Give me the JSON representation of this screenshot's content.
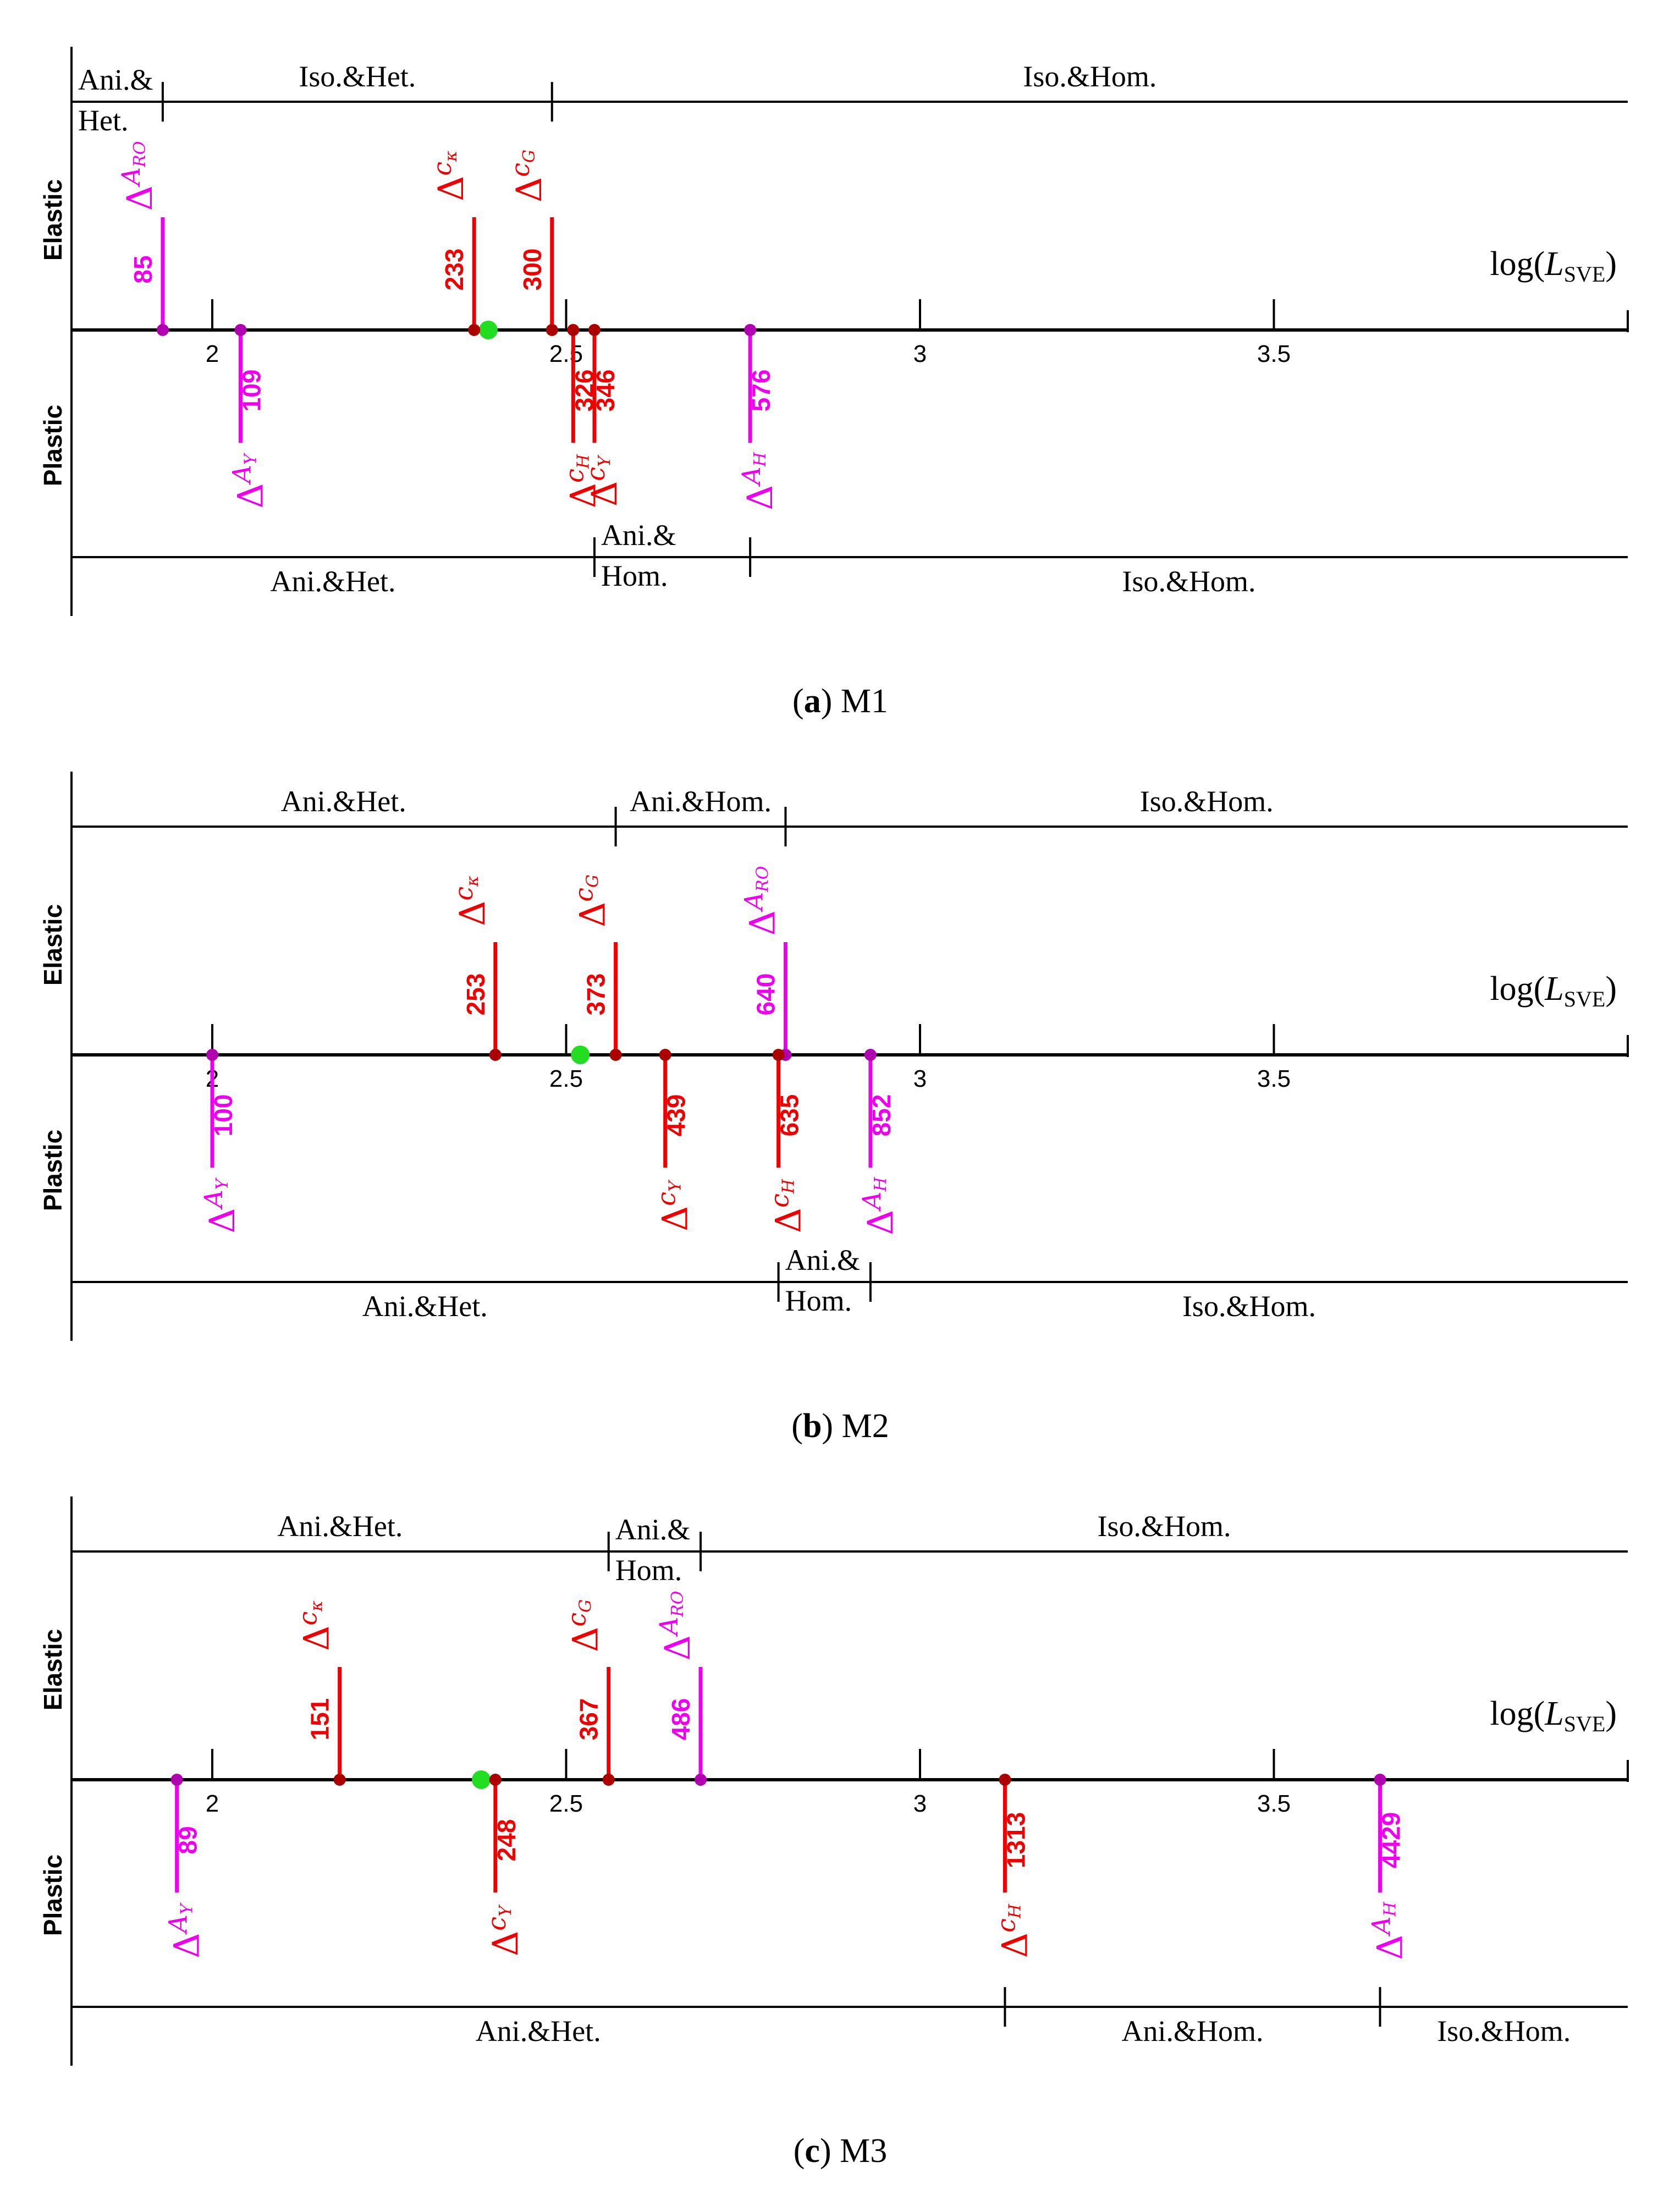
{
  "colors": {
    "magenta": "#ee00ee",
    "red": "#ee0000",
    "green": "#22dd22",
    "dot_magenta": "#b000b0",
    "dot_red": "#aa0000"
  },
  "chart_data": [
    {
      "type": "scatter",
      "panel": "a",
      "panel_name": "M1",
      "xlabel_prefix": "log(",
      "xlabel_var": "L",
      "xlabel_sub": "SVE",
      "xlabel_suffix": ")",
      "xlim": [
        1.8,
        4.0
      ],
      "ticks": [
        2,
        2.5,
        3,
        3.5
      ],
      "tick_labels": [
        "2",
        "2.5",
        "3",
        "3.5"
      ],
      "green_point": 2.39,
      "mode_labels": {
        "elastic": "Elastic",
        "plastic": "Plastic"
      },
      "markers": [
        {
          "id": "A_RO",
          "side": "elastic",
          "color": "magenta",
          "x": 1.93,
          "label": "85",
          "sym": "A",
          "sub": "RO"
        },
        {
          "id": "c_kappa",
          "side": "elastic",
          "color": "red",
          "x": 2.37,
          "label": "233",
          "sym": "c",
          "sub": "κ"
        },
        {
          "id": "c_G",
          "side": "elastic",
          "color": "red",
          "x": 2.48,
          "label": "300",
          "sym": "c",
          "sub": "G"
        },
        {
          "id": "A_Y",
          "side": "plastic",
          "color": "magenta",
          "x": 2.04,
          "label": "109",
          "sym": "A",
          "sub": "Y"
        },
        {
          "id": "c_H",
          "side": "plastic",
          "color": "red",
          "x": 2.51,
          "label": "326",
          "sym": "c",
          "sub": "H"
        },
        {
          "id": "c_Y",
          "side": "plastic",
          "color": "red",
          "x": 2.54,
          "label": "346",
          "sym": "c",
          "sub": "Y"
        },
        {
          "id": "A_H",
          "side": "plastic",
          "color": "magenta",
          "x": 2.76,
          "label": "576",
          "sym": "A",
          "sub": "H"
        }
      ],
      "elastic_regions": [
        {
          "label": "Ani.&",
          "label2": "Het.",
          "from": 1.8,
          "to": 1.93
        },
        {
          "label": "Iso.&Het.",
          "from": 1.93,
          "to": 2.48
        },
        {
          "label": "Iso.&Hom.",
          "from": 2.48,
          "to": 4.0
        }
      ],
      "plastic_regions": [
        {
          "label": "Ani.&Het.",
          "from": 1.8,
          "to": 2.54
        },
        {
          "label": "Ani.&",
          "label2": "Hom.",
          "from": 2.54,
          "to": 2.76
        },
        {
          "label": "Iso.&Hom.",
          "from": 2.76,
          "to": 4.0
        }
      ]
    },
    {
      "type": "scatter",
      "panel": "b",
      "panel_name": "M2",
      "xlabel_prefix": "log(",
      "xlabel_var": "L",
      "xlabel_sub": "SVE",
      "xlabel_suffix": ")",
      "xlim": [
        1.8,
        4.0
      ],
      "ticks": [
        2,
        2.5,
        3,
        3.5
      ],
      "tick_labels": [
        "2",
        "2.5",
        "3",
        "3.5"
      ],
      "green_point": 2.52,
      "mode_labels": {
        "elastic": "Elastic",
        "plastic": "Plastic"
      },
      "markers": [
        {
          "id": "c_kappa",
          "side": "elastic",
          "color": "red",
          "x": 2.4,
          "label": "253",
          "sym": "c",
          "sub": "κ"
        },
        {
          "id": "c_G",
          "side": "elastic",
          "color": "red",
          "x": 2.57,
          "label": "373",
          "sym": "c",
          "sub": "G"
        },
        {
          "id": "A_RO",
          "side": "elastic",
          "color": "magenta",
          "x": 2.81,
          "label": "640",
          "sym": "A",
          "sub": "RO"
        },
        {
          "id": "A_Y",
          "side": "plastic",
          "color": "magenta",
          "x": 2.0,
          "label": "100",
          "sym": "A",
          "sub": "Y"
        },
        {
          "id": "c_Y",
          "side": "plastic",
          "color": "red",
          "x": 2.64,
          "label": "439",
          "sym": "c",
          "sub": "Y"
        },
        {
          "id": "c_H",
          "side": "plastic",
          "color": "red",
          "x": 2.8,
          "label": "635",
          "sym": "c",
          "sub": "H"
        },
        {
          "id": "A_H",
          "side": "plastic",
          "color": "magenta",
          "x": 2.93,
          "label": "852",
          "sym": "A",
          "sub": "H"
        }
      ],
      "elastic_regions": [
        {
          "label": "Ani.&Het.",
          "from": 1.8,
          "to": 2.57
        },
        {
          "label": "Ani.&Hom.",
          "from": 2.57,
          "to": 2.81
        },
        {
          "label": "Iso.&Hom.",
          "from": 2.81,
          "to": 4.0
        }
      ],
      "plastic_regions": [
        {
          "label": "Ani.&Het.",
          "from": 1.8,
          "to": 2.8
        },
        {
          "label": "Ani.&",
          "label2": "Hom.",
          "from": 2.8,
          "to": 2.93
        },
        {
          "label": "Iso.&Hom.",
          "from": 2.93,
          "to": 4.0
        }
      ]
    },
    {
      "type": "scatter",
      "panel": "c",
      "panel_name": "M3",
      "xlabel_prefix": "log(",
      "xlabel_var": "L",
      "xlabel_sub": "SVE",
      "xlabel_suffix": ")",
      "xlim": [
        1.8,
        4.0
      ],
      "ticks": [
        2,
        2.5,
        3,
        3.5
      ],
      "tick_labels": [
        "2",
        "2.5",
        "3",
        "3.5"
      ],
      "green_point": 2.38,
      "mode_labels": {
        "elastic": "Elastic",
        "plastic": "Plastic"
      },
      "markers": [
        {
          "id": "c_kappa",
          "side": "elastic",
          "color": "red",
          "x": 2.18,
          "label": "151",
          "sym": "c",
          "sub": "κ"
        },
        {
          "id": "c_G",
          "side": "elastic",
          "color": "red",
          "x": 2.56,
          "label": "367",
          "sym": "c",
          "sub": "G"
        },
        {
          "id": "A_RO",
          "side": "elastic",
          "color": "magenta",
          "x": 2.69,
          "label": "486",
          "sym": "A",
          "sub": "RO"
        },
        {
          "id": "A_Y",
          "side": "plastic",
          "color": "magenta",
          "x": 1.95,
          "label": "89",
          "sym": "A",
          "sub": "Y"
        },
        {
          "id": "c_Y",
          "side": "plastic",
          "color": "red",
          "x": 2.4,
          "label": "248",
          "sym": "c",
          "sub": "Y"
        },
        {
          "id": "c_H",
          "side": "plastic",
          "color": "red",
          "x": 3.12,
          "label": "1313",
          "sym": "c",
          "sub": "H"
        },
        {
          "id": "A_H",
          "side": "plastic",
          "color": "magenta",
          "x": 3.65,
          "label": "4429",
          "sym": "A",
          "sub": "H"
        }
      ],
      "elastic_regions": [
        {
          "label": "Ani.&Het.",
          "from": 1.8,
          "to": 2.56
        },
        {
          "label": "Ani.&",
          "label2": "Hom.",
          "from": 2.56,
          "to": 2.69
        },
        {
          "label": "Iso.&Hom.",
          "from": 2.69,
          "to": 4.0
        }
      ],
      "plastic_regions": [
        {
          "label": "Ani.&Het.",
          "from": 1.8,
          "to": 3.12
        },
        {
          "label": "Ani.&Hom.",
          "from": 3.12,
          "to": 3.65
        },
        {
          "label": "Iso.&Hom.",
          "from": 3.65,
          "to": 4.0
        }
      ]
    }
  ]
}
